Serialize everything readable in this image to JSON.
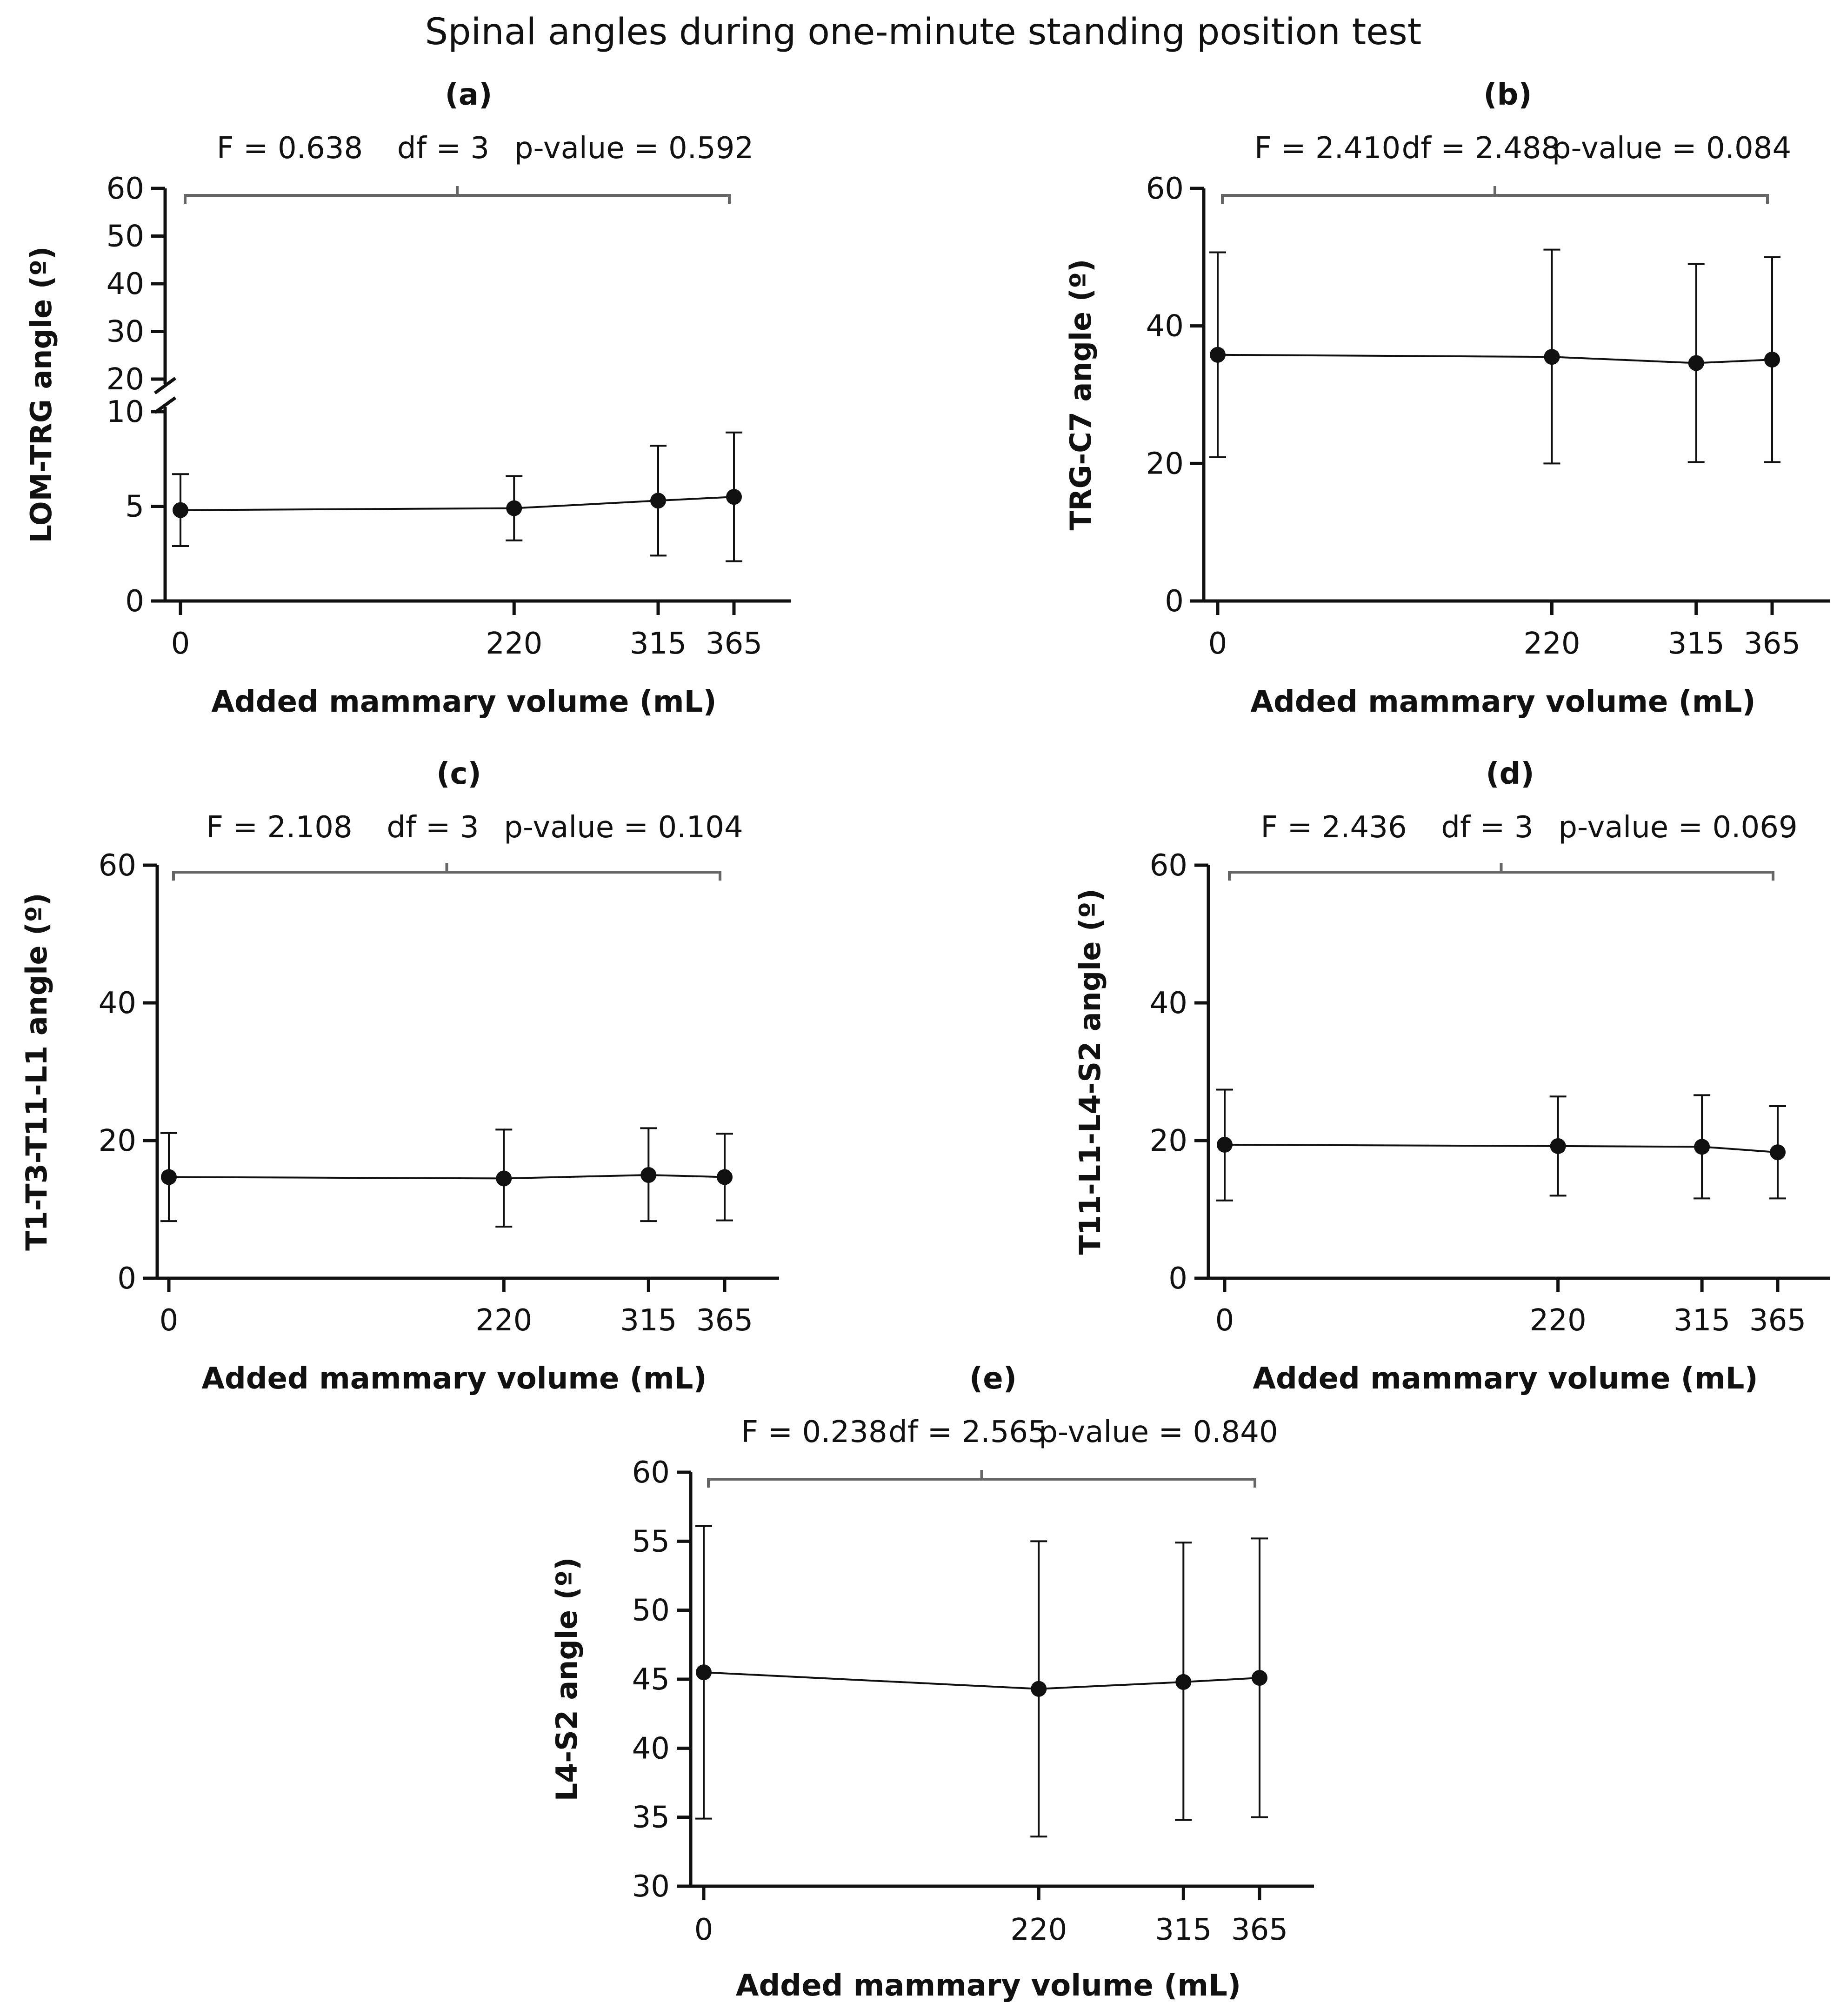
{
  "figure_title": "Spinal angles during one-minute standing position test",
  "chart_data": [
    {
      "id": "a",
      "type": "line",
      "panel_label": "(a)",
      "title": "Spinal angles during one-minute standing position test",
      "stats": {
        "F": "F =  0.638",
        "df": "df = 3",
        "p": "p-value = 0.592"
      },
      "xlabel": "Added mammary volume (mL)",
      "ylabel": "LOM-TRG angle (º)",
      "categories": [
        "0",
        "220",
        "315",
        "365"
      ],
      "x": [
        0,
        220,
        315,
        365
      ],
      "values": [
        4.8,
        4.9,
        5.3,
        5.5
      ],
      "err_low": [
        2.9,
        3.2,
        2.4,
        2.1
      ],
      "err_high": [
        6.7,
        6.6,
        8.2,
        8.9
      ],
      "broken_axis": true,
      "lower_ylim": [
        0,
        10
      ],
      "lower_yticks": [
        "0",
        "5",
        "10"
      ],
      "upper_ylim": [
        20,
        60
      ],
      "upper_yticks": [
        "20",
        "30",
        "40",
        "50",
        "60"
      ]
    },
    {
      "id": "b",
      "type": "line",
      "panel_label": "(b)",
      "stats": {
        "F": "F =  2.410",
        "df": "df = 2.488",
        "p": "p-value = 0.084"
      },
      "xlabel": "Added mammary volume (mL)",
      "ylabel": "TRG-C7 angle  (º)",
      "categories": [
        "0",
        "220",
        "315",
        "365"
      ],
      "x": [
        0,
        220,
        315,
        365
      ],
      "values": [
        35.8,
        35.5,
        34.6,
        35.1
      ],
      "err_low": [
        20.9,
        20.0,
        20.2,
        20.2
      ],
      "err_high": [
        50.7,
        51.1,
        49.0,
        50.0
      ],
      "ylim": [
        0,
        60
      ],
      "yticks": [
        "0",
        "20",
        "40",
        "60"
      ]
    },
    {
      "id": "c",
      "type": "line",
      "panel_label": "(c)",
      "stats": {
        "F": "F =  2.108",
        "df": "df = 3",
        "p": "p-value = 0.104"
      },
      "xlabel": "Added mammary volume (mL)",
      "ylabel": "T1-T3-T11-L1 angle  (º)",
      "categories": [
        "0",
        "220",
        "315",
        "365"
      ],
      "x": [
        0,
        220,
        315,
        365
      ],
      "values": [
        14.7,
        14.5,
        15.0,
        14.7
      ],
      "err_low": [
        8.3,
        7.5,
        8.3,
        8.4
      ],
      "err_high": [
        21.1,
        21.6,
        21.8,
        21.0
      ],
      "ylim": [
        0,
        60
      ],
      "yticks": [
        "0",
        "20",
        "40",
        "60"
      ]
    },
    {
      "id": "d",
      "type": "line",
      "panel_label": "(d)",
      "stats": {
        "F": "F =  2.436",
        "df": "df = 3",
        "p": "p-value = 0.069"
      },
      "xlabel": "Added mammary volume (mL)",
      "ylabel": "T11-L1-L4-S2 angle (º)",
      "categories": [
        "0",
        "220",
        "315",
        "365"
      ],
      "x": [
        0,
        220,
        315,
        365
      ],
      "values": [
        19.4,
        19.2,
        19.1,
        18.3
      ],
      "err_low": [
        11.3,
        12.0,
        11.6,
        11.6
      ],
      "err_high": [
        27.4,
        26.4,
        26.6,
        25.0
      ],
      "ylim": [
        0,
        60
      ],
      "yticks": [
        "0",
        "20",
        "40",
        "60"
      ]
    },
    {
      "id": "e",
      "type": "line",
      "panel_label": "(e)",
      "stats": {
        "F": "F =  0.238",
        "df": "df = 2.565",
        "p": "p-value = 0.840"
      },
      "xlabel": "Added mammary volume (mL)",
      "ylabel": "L4-S2 angle  (º)",
      "categories": [
        "0",
        "220",
        "315",
        "365"
      ],
      "x": [
        0,
        220,
        315,
        365
      ],
      "values": [
        45.5,
        44.3,
        44.8,
        45.1
      ],
      "err_low": [
        34.9,
        33.6,
        34.8,
        35.0
      ],
      "err_high": [
        56.1,
        55.0,
        54.9,
        55.2
      ],
      "ylim": [
        30,
        60
      ],
      "yticks": [
        "30",
        "35",
        "40",
        "45",
        "50",
        "55",
        "60"
      ]
    }
  ]
}
